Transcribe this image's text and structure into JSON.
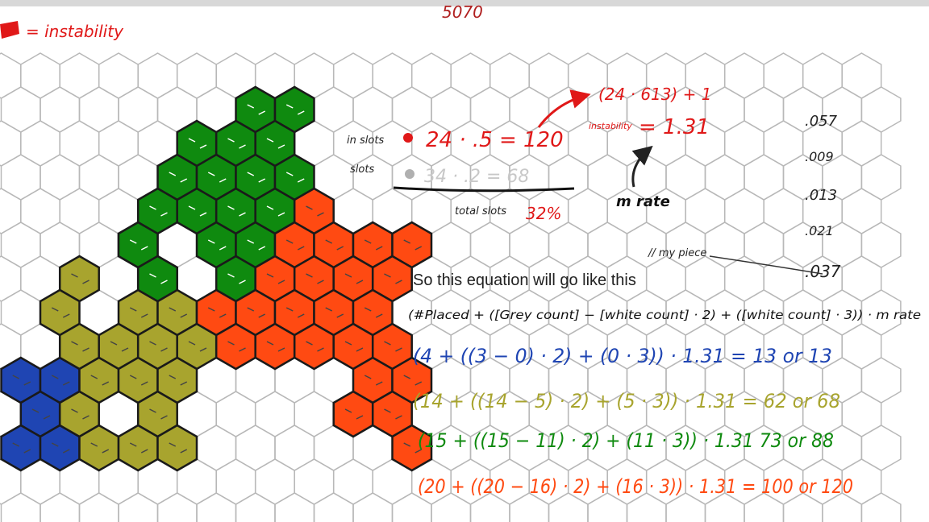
{
  "header": {
    "legend_label": "= instability",
    "top_label": "5070"
  },
  "colors": {
    "grid_line": "#b8b8b8",
    "blue": "#1f45b3",
    "olive": "#a8a42e",
    "green": "#0f8a0f",
    "orange": "#ff4a12",
    "red_ink": "#e01818"
  },
  "notes": {
    "in_slots_label": "in slots",
    "in_slots_calc": "24 · .5 = 120",
    "slots_label": "slots",
    "slots_calc": "34 · .2 = 68",
    "total_slots_label": "total slots",
    "total_slots_value": "32%",
    "formula_top": "(24 · 613) + 1",
    "instability_label": "instability",
    "instability_value": "= 1.31",
    "mrate_label": "m rate",
    "my_piece_label": "// my piece"
  },
  "rates": [
    ".057",
    ".009",
    ".013",
    ".021",
    ".037"
  ],
  "explanation": "So this equation will go like this",
  "equations": {
    "general": "(#Placed + ([Grey count] − [white count] · 2) + ([white count] · 3)) · m rate",
    "blue": "(4 + ((3 − 0) · 2) + (0 · 3)) · 1.31 = 13 or 13",
    "olive": "(14 + ((14 − 5) · 2) + (5 · 3)) · 1.31 = 62 or 68",
    "green": "(15 + ((15 − 11) · 2) + (11 · 3)) · 1.31 73 or 88",
    "orange": "(20 + ((20 − 16) · 2) + (16 · 3)) · 1.31 = 100 or 120"
  }
}
